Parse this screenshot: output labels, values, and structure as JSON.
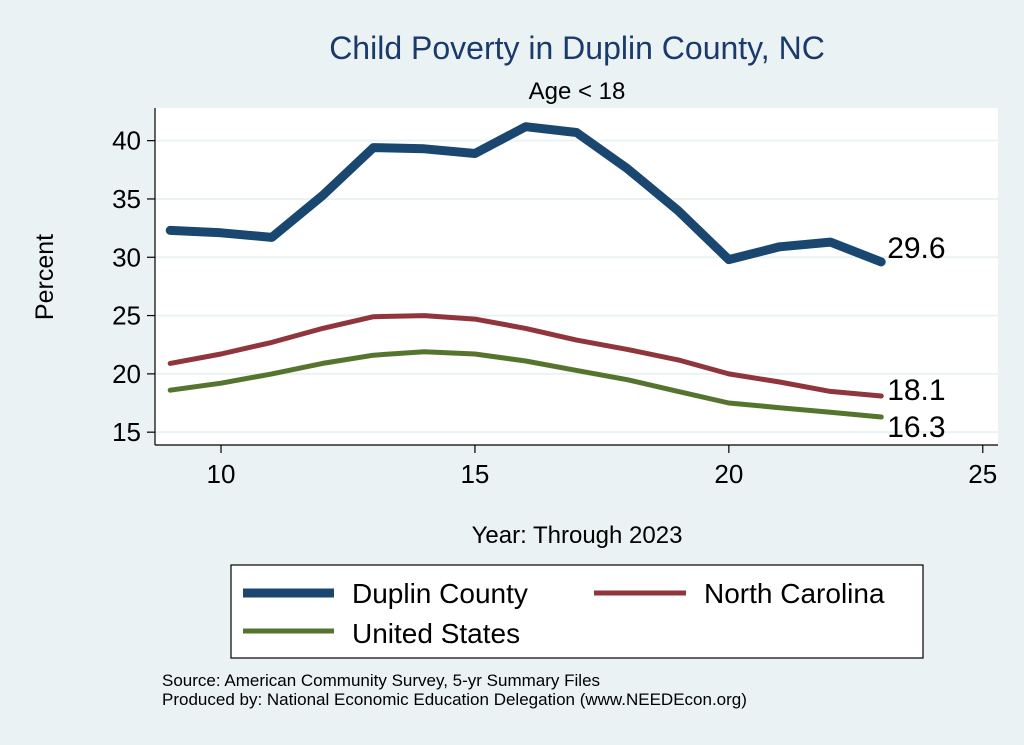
{
  "chart_data": {
    "type": "line",
    "title": "Child Poverty in Duplin County, NC",
    "subtitle": "Age < 18",
    "xlabel": "Year: Through 2023",
    "ylabel": "Percent",
    "xlim": [
      8.7,
      25.3
    ],
    "ylim": [
      13.9,
      42.8
    ],
    "xticks": [
      10,
      15,
      20,
      25
    ],
    "yticks": [
      15,
      20,
      25,
      30,
      35,
      40
    ],
    "x": [
      9,
      10,
      11,
      12,
      13,
      14,
      15,
      16,
      17,
      18,
      19,
      20,
      21,
      22,
      23
    ],
    "series": [
      {
        "name": "Duplin County",
        "color": "#1a476f",
        "values": [
          32.3,
          32.1,
          31.7,
          35.3,
          39.4,
          39.3,
          38.9,
          41.2,
          40.7,
          37.6,
          34.0,
          29.8,
          30.9,
          31.3,
          29.6
        ],
        "end_label": "29.6"
      },
      {
        "name": "North Carolina",
        "color": "#90353b",
        "values": [
          20.9,
          21.7,
          22.7,
          23.9,
          24.9,
          25.0,
          24.7,
          23.9,
          22.9,
          22.1,
          21.2,
          20.0,
          19.3,
          18.5,
          18.1
        ],
        "end_label": "18.1"
      },
      {
        "name": "United States",
        "color": "#55752f",
        "values": [
          18.6,
          19.2,
          20.0,
          20.9,
          21.6,
          21.9,
          21.7,
          21.1,
          20.3,
          19.5,
          18.5,
          17.5,
          17.1,
          16.7,
          16.3
        ],
        "end_label": "16.3"
      }
    ],
    "legend": {
      "placement": "bottom",
      "items": [
        "Duplin County",
        "North Carolina",
        "United States"
      ]
    }
  },
  "footer": {
    "source": "Source: American Community Survey, 5-yr Summary Files",
    "produced_by": "Produced by: National Economic Education Delegation (www.NEEDEcon.org)"
  },
  "colors": {
    "background": "#eaf2f3",
    "plot_background": "#ffffff",
    "gridline": "#eaf2f3",
    "title": "#1a3a6b"
  }
}
